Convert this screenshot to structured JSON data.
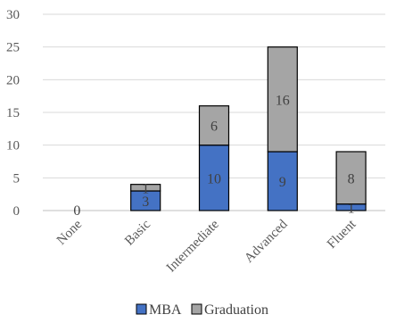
{
  "chart_data": {
    "type": "bar",
    "stacked": true,
    "categories": [
      "None",
      "Basic",
      "Intermediate",
      "Advanced",
      "Fluent"
    ],
    "series": [
      {
        "name": "MBA",
        "values": [
          0,
          3,
          10,
          9,
          1
        ],
        "color": "#4472c4"
      },
      {
        "name": "Graduation",
        "values": [
          0,
          1,
          6,
          16,
          8
        ],
        "color": "#a5a5a5"
      }
    ],
    "data_labels": [
      [
        "0",
        "3",
        "10",
        "9",
        "1"
      ],
      [
        "",
        "1",
        "6",
        "16",
        "8"
      ]
    ],
    "yticks": [
      "0",
      "5",
      "10",
      "15",
      "20",
      "25",
      "30"
    ],
    "ylim": [
      0,
      30
    ],
    "grid": true,
    "legend_position": "bottom",
    "title": "",
    "xlabel": "",
    "ylabel": ""
  }
}
